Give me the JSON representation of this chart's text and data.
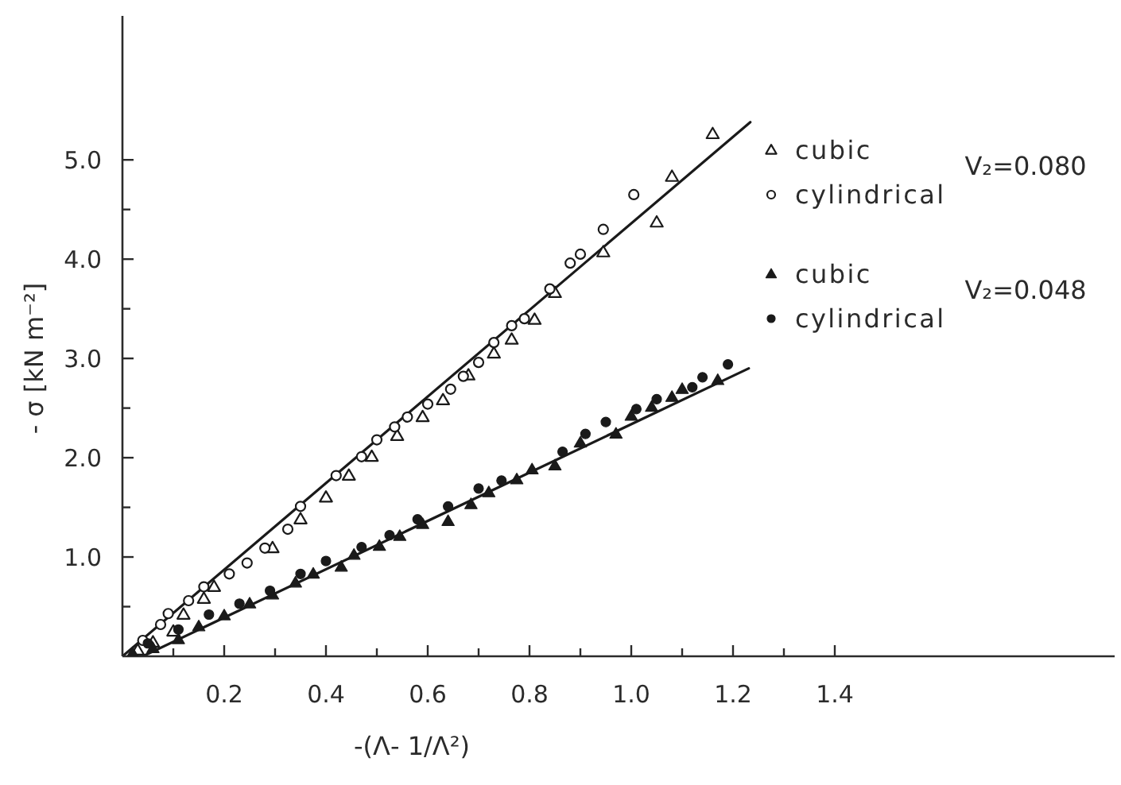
{
  "chart_data": {
    "type": "scatter",
    "xlabel": "-(Λ- 1/Λ²)",
    "ylabel": "- σ [kN m⁻²]",
    "xlim": [
      0,
      1.95
    ],
    "ylim": [
      0,
      6.45
    ],
    "xticks": [
      {
        "value": 0.1,
        "label": null
      },
      0.2,
      {
        "value": 0.3,
        "label": null
      },
      0.4,
      {
        "value": 0.5,
        "label": null
      },
      0.6,
      {
        "value": 0.7,
        "label": null
      },
      0.8,
      {
        "value": 0.9,
        "label": null
      },
      {
        "value": 1,
        "label": "1.0"
      },
      {
        "value": 1.1,
        "label": null
      },
      1.2,
      {
        "value": 1.3,
        "label": null
      },
      1.4
    ],
    "yticks": [
      {
        "value": 0.5,
        "label": null
      },
      {
        "value": 1,
        "label": "1.0"
      },
      {
        "value": 1.5,
        "label": null
      },
      {
        "value": 2,
        "label": "2.0"
      },
      {
        "value": 2.5,
        "label": null
      },
      {
        "value": 3,
        "label": "3.0"
      },
      {
        "value": 3.5,
        "label": null
      },
      {
        "value": 4,
        "label": "4.0"
      },
      {
        "value": 4.5,
        "label": null
      },
      {
        "value": 5,
        "label": "5.0"
      }
    ],
    "legend": "top right",
    "annotations": [
      "V₂=0.080",
      "V₂=0.048"
    ],
    "series": [
      {
        "name": "cubic",
        "color": "#1a1a1a",
        "marker": "triangle-open",
        "x": [
          0.03,
          0.06,
          0.1,
          0.12,
          0.16,
          0.18,
          0.295,
          0.35,
          0.4,
          0.445,
          0.49,
          0.54,
          0.59,
          0.63,
          0.68,
          0.73,
          0.765,
          0.81,
          0.85,
          0.945,
          1.05,
          1.08,
          1.16
        ],
        "values": [
          0.06,
          0.14,
          0.25,
          0.42,
          0.58,
          0.7,
          1.09,
          1.38,
          1.6,
          1.82,
          2.01,
          2.22,
          2.41,
          2.58,
          2.83,
          3.05,
          3.19,
          3.39,
          3.66,
          4.07,
          4.37,
          4.83,
          5.26
        ]
      },
      {
        "name": "cylindrical",
        "color": "#1a1a1a",
        "marker": "circle-open",
        "x": [
          0.04,
          0.075,
          0.09,
          0.13,
          0.16,
          0.21,
          0.245,
          0.28,
          0.325,
          0.35,
          0.42,
          0.47,
          0.5,
          0.535,
          0.56,
          0.6,
          0.645,
          0.67,
          0.7,
          0.73,
          0.765,
          0.79,
          0.84,
          0.88,
          0.9,
          0.945,
          1.005
        ],
        "values": [
          0.16,
          0.32,
          0.43,
          0.56,
          0.7,
          0.83,
          0.94,
          1.09,
          1.28,
          1.51,
          1.82,
          2.01,
          2.18,
          2.31,
          2.41,
          2.54,
          2.69,
          2.82,
          2.96,
          3.16,
          3.33,
          3.4,
          3.7,
          3.96,
          4.05,
          4.3,
          4.65
        ]
      },
      {
        "name": "cubic",
        "color": "#1a1a1a",
        "marker": "triangle",
        "x": [
          0.02,
          0.06,
          0.11,
          0.15,
          0.2,
          0.25,
          0.295,
          0.34,
          0.375,
          0.43,
          0.455,
          0.505,
          0.545,
          0.59,
          0.64,
          0.685,
          0.72,
          0.775,
          0.805,
          0.85,
          0.9,
          0.97,
          1,
          1.04,
          1.08,
          1.1,
          1.17
        ],
        "values": [
          0.03,
          0.08,
          0.17,
          0.3,
          0.41,
          0.53,
          0.62,
          0.74,
          0.83,
          0.9,
          1.02,
          1.11,
          1.21,
          1.33,
          1.36,
          1.53,
          1.65,
          1.78,
          1.88,
          1.92,
          2.15,
          2.24,
          2.42,
          2.51,
          2.61,
          2.69,
          2.78
        ]
      },
      {
        "name": "cylindrical",
        "color": "#1a1a1a",
        "marker": "circle",
        "x": [
          0.05,
          0.11,
          0.17,
          0.23,
          0.29,
          0.35,
          0.4,
          0.47,
          0.525,
          0.58,
          0.64,
          0.7,
          0.745,
          0.865,
          0.91,
          0.95,
          1.01,
          1.05,
          1.12,
          1.14,
          1.19
        ],
        "values": [
          0.13,
          0.27,
          0.42,
          0.53,
          0.66,
          0.83,
          0.96,
          1.1,
          1.22,
          1.38,
          1.51,
          1.69,
          1.77,
          2.06,
          2.24,
          2.36,
          2.49,
          2.59,
          2.71,
          2.81,
          2.94
        ]
      },
      {
        "type": "line",
        "color": "#1a1a1a",
        "marker": "none",
        "x": [
          0,
          1.234
        ],
        "values": [
          0,
          5.38
        ]
      },
      {
        "type": "line",
        "color": "#1a1a1a",
        "marker": "none",
        "x": [
          0.04,
          1.231
        ],
        "values": [
          0,
          2.9
        ]
      }
    ]
  }
}
